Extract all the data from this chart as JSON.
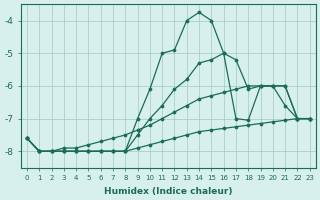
{
  "xlabel": "Humidex (Indice chaleur)",
  "background_color": "#d8f0ec",
  "grid_color": "#a0c8c0",
  "line_color": "#1a6b5a",
  "x_labels": [
    "0",
    "1",
    "2",
    "3",
    "4",
    "5",
    "6",
    "7",
    "8",
    "9",
    "10",
    "11",
    "12",
    "13",
    "14",
    "15",
    "16",
    "17",
    "18",
    "19",
    "20",
    "21",
    "22",
    "23"
  ],
  "ylim": [
    -8.5,
    -3.5
  ],
  "xlim": [
    -0.5,
    23.5
  ],
  "yticks": [
    -8,
    -7,
    -6,
    -5,
    -4
  ],
  "series": {
    "s1_upper": [
      -7.6,
      -8.0,
      -8.0,
      -8.0,
      -8.0,
      -8.0,
      -8.0,
      -8.0,
      -8.0,
      -7.0,
      -6.1,
      -5.0,
      -4.9,
      -4.0,
      -3.75,
      -4.0,
      -5.0,
      -5.2,
      -6.1,
      -6.0,
      -6.0,
      -6.6,
      -7.0,
      -7.0
    ],
    "s2_mid1": [
      -7.6,
      -8.0,
      -8.0,
      -8.0,
      -8.0,
      -8.0,
      -8.0,
      -8.0,
      -8.0,
      -7.5,
      -7.0,
      -6.6,
      -6.1,
      -5.8,
      -5.3,
      -5.2,
      -5.0,
      -7.0,
      -7.05,
      -6.0,
      -6.0,
      -6.0,
      -7.0,
      -7.0
    ],
    "s3_diag": [
      -7.6,
      -8.0,
      -8.0,
      -7.9,
      -7.9,
      -7.8,
      -7.7,
      -7.6,
      -7.5,
      -7.35,
      -7.2,
      -7.0,
      -6.8,
      -6.6,
      -6.4,
      -6.3,
      -6.2,
      -6.1,
      -6.0,
      -6.0,
      -6.0,
      -6.0,
      -7.0,
      -7.0
    ],
    "s4_flat": [
      -7.6,
      -8.0,
      -8.0,
      -8.0,
      -8.0,
      -8.0,
      -8.0,
      -8.0,
      -8.0,
      -7.9,
      -7.8,
      -7.7,
      -7.6,
      -7.5,
      -7.4,
      -7.35,
      -7.3,
      -7.25,
      -7.2,
      -7.15,
      -7.1,
      -7.05,
      -7.0,
      -7.0
    ]
  }
}
